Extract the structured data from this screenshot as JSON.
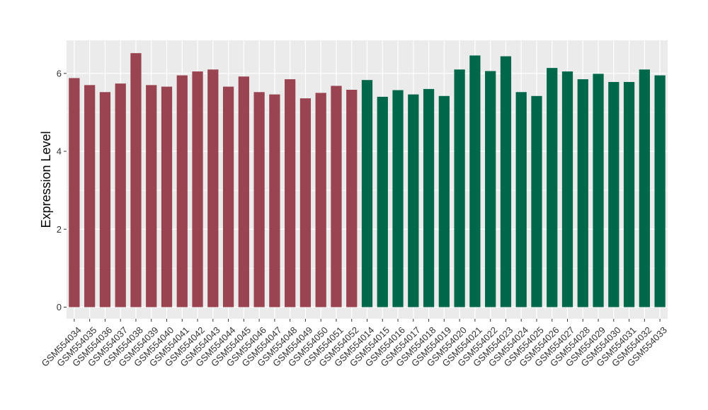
{
  "chart_data": {
    "type": "bar",
    "title": "",
    "xlabel": "",
    "ylabel": "Expression Level",
    "ylim": [
      -0.3,
      6.85
    ],
    "yticks": [
      0,
      2,
      4,
      6
    ],
    "grid": true,
    "categories": [
      "GSM554034",
      "GSM554035",
      "GSM554036",
      "GSM554037",
      "GSM554038",
      "GSM554039",
      "GSM554040",
      "GSM554041",
      "GSM554042",
      "GSM554043",
      "GSM554044",
      "GSM554045",
      "GSM554046",
      "GSM554047",
      "GSM554048",
      "GSM554049",
      "GSM554050",
      "GSM554051",
      "GSM554052",
      "GSM554014",
      "GSM554015",
      "GSM554016",
      "GSM554017",
      "GSM554018",
      "GSM554019",
      "GSM554020",
      "GSM554021",
      "GSM554022",
      "GSM554023",
      "GSM554024",
      "GSM554025",
      "GSM554026",
      "GSM554027",
      "GSM554028",
      "GSM554029",
      "GSM554030",
      "GSM554031",
      "GSM554032",
      "GSM554033"
    ],
    "values": [
      5.88,
      5.7,
      5.52,
      5.74,
      6.52,
      5.7,
      5.66,
      5.95,
      6.05,
      6.1,
      5.66,
      5.92,
      5.52,
      5.46,
      5.85,
      5.36,
      5.5,
      5.68,
      5.58,
      5.83,
      5.4,
      5.57,
      5.46,
      5.6,
      5.42,
      6.1,
      6.46,
      6.06,
      6.44,
      5.52,
      5.42,
      6.14,
      6.05,
      5.85,
      5.99,
      5.78,
      5.78,
      6.1,
      5.95
    ],
    "groups": [
      0,
      0,
      0,
      0,
      0,
      0,
      0,
      0,
      0,
      0,
      0,
      0,
      0,
      0,
      0,
      0,
      0,
      0,
      0,
      1,
      1,
      1,
      1,
      1,
      1,
      1,
      1,
      1,
      1,
      1,
      1,
      1,
      1,
      1,
      1,
      1,
      1,
      1,
      1
    ],
    "colors": [
      "#9a4351",
      "#00684a"
    ]
  },
  "style": {
    "panel_bg": "#ebebeb",
    "grid_color": "#ffffff"
  }
}
